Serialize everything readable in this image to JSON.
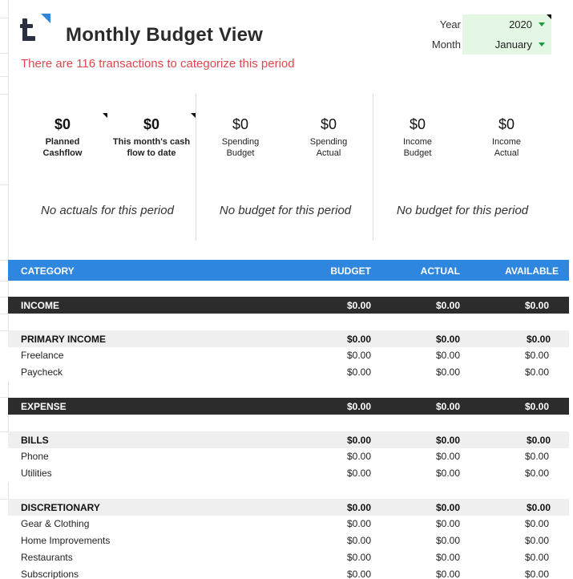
{
  "header": {
    "title": "Monthly Budget View",
    "subtitle": "There are 116 transactions to categorize this period",
    "year_label": "Year",
    "year_value": "2020",
    "month_label": "Month",
    "month_value": "January"
  },
  "summary": {
    "cards": [
      {
        "amount": "$0",
        "label_line1": "Planned",
        "label_line2": "Cashflow"
      },
      {
        "amount": "$0",
        "label_line1": "This month's cash",
        "label_line2": "flow to date"
      },
      {
        "amount": "$0",
        "label_line1": "Spending",
        "label_line2": "Budget"
      },
      {
        "amount": "$0",
        "label_line1": "Spending",
        "label_line2": "Actual"
      },
      {
        "amount": "$0",
        "label_line1": "Income",
        "label_line2": "Budget"
      },
      {
        "amount": "$0",
        "label_line1": "Income",
        "label_line2": "Actual"
      }
    ],
    "messages": [
      "No actuals for this period",
      "No budget for this period",
      "No budget for this period"
    ]
  },
  "table": {
    "columns": [
      "CATEGORY",
      "BUDGET",
      "ACTUAL",
      "AVAILABLE"
    ],
    "income": {
      "label": "INCOME",
      "budget": "$0.00",
      "actual": "$0.00",
      "available": "$0.00",
      "groups": [
        {
          "label": "PRIMARY INCOME",
          "budget": "$0.00",
          "actual": "$0.00",
          "available": "$0.00",
          "items": [
            {
              "label": "Freelance",
              "budget": "$0.00",
              "actual": "$0.00",
              "available": "$0.00"
            },
            {
              "label": "Paycheck",
              "budget": "$0.00",
              "actual": "$0.00",
              "available": "$0.00"
            }
          ]
        }
      ]
    },
    "expense": {
      "label": "EXPENSE",
      "budget": "$0.00",
      "actual": "$0.00",
      "available": "$0.00",
      "groups": [
        {
          "label": "BILLS",
          "budget": "$0.00",
          "actual": "$0.00",
          "available": "$0.00",
          "items": [
            {
              "label": "Phone",
              "budget": "$0.00",
              "actual": "$0.00",
              "available": "$0.00"
            },
            {
              "label": "Utilities",
              "budget": "$0.00",
              "actual": "$0.00",
              "available": "$0.00"
            }
          ]
        },
        {
          "label": "DISCRETIONARY",
          "budget": "$0.00",
          "actual": "$0.00",
          "available": "$0.00",
          "items": [
            {
              "label": "Gear & Clothing",
              "budget": "$0.00",
              "actual": "$0.00",
              "available": "$0.00"
            },
            {
              "label": "Home Improvements",
              "budget": "$0.00",
              "actual": "$0.00",
              "available": "$0.00"
            },
            {
              "label": "Restaurants",
              "budget": "$0.00",
              "actual": "$0.00",
              "available": "$0.00"
            },
            {
              "label": "Subscriptions",
              "budget": "$0.00",
              "actual": "$0.00",
              "available": "$0.00"
            }
          ]
        }
      ]
    }
  },
  "colors": {
    "accent_blue": "#2e86de",
    "alert_red": "#e0474c",
    "section_dark": "#2c2c2c",
    "group_gray": "#efefef",
    "dropdown_green": "#e4f6e4"
  },
  "icons": {
    "logo": "tiller-logo-icon",
    "dropdown": "chevron-down-icon"
  }
}
